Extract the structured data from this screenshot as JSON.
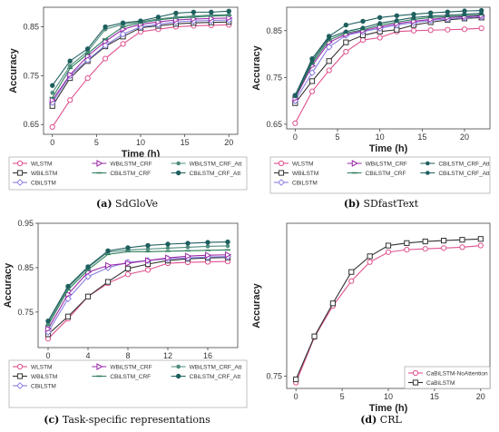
{
  "colors": {
    "WLSTM": "#e0508f",
    "WBiLSTM": "#333333",
    "CBiLSTM": "#8a7fe0",
    "WBiLSTM_CRF": "#9b2aa8",
    "CBiLSTM_CRF": "#2e7d5b",
    "WBiLSTM_CRF_Att": "#4e8d7d",
    "CBiLSTM_CRF_Att": "#1f5f5f",
    "CaBiLSTM-NoAttention": "#e0508f",
    "CaBiLSTM": "#333333"
  },
  "chart_data": [
    {
      "type": "line",
      "id": "a",
      "caption_letter": "(a)",
      "caption_text": "SdGloVe",
      "xlabel": "Time (h)",
      "ylabel": "Accuracy",
      "xlim": [
        -1,
        21
      ],
      "ylim": [
        0.63,
        0.89
      ],
      "xticks": [
        0,
        5,
        10,
        15,
        20
      ],
      "yticks": [
        0.65,
        0.75,
        0.85
      ],
      "x": [
        0,
        2,
        4,
        6,
        8,
        10,
        12,
        14,
        16,
        18,
        20
      ],
      "legend": {
        "entries": [
          "WLSTM",
          "WBiLSTM_CRF",
          "WBiLSTM_CRF_Att",
          "WBiLSTM",
          "CBiLSTM_CRF",
          "CBiLSTM_CRF_Att",
          "CBiLSTM"
        ]
      },
      "series": [
        {
          "name": "WLSTM",
          "marker": "circle",
          "values": [
            0.645,
            0.7,
            0.745,
            0.785,
            0.815,
            0.84,
            0.845,
            0.85,
            0.852,
            0.853,
            0.854
          ]
        },
        {
          "name": "WBiLSTM",
          "marker": "square",
          "values": [
            0.688,
            0.745,
            0.78,
            0.81,
            0.83,
            0.848,
            0.852,
            0.856,
            0.858,
            0.859,
            0.86
          ]
        },
        {
          "name": "CBiLSTM",
          "marker": "diamond",
          "values": [
            0.695,
            0.75,
            0.782,
            0.812,
            0.835,
            0.85,
            0.855,
            0.86,
            0.862,
            0.863,
            0.864
          ]
        },
        {
          "name": "WBiLSTM_CRF",
          "marker": "triangle",
          "values": [
            0.7,
            0.752,
            0.79,
            0.82,
            0.845,
            0.855,
            0.86,
            0.864,
            0.866,
            0.867,
            0.868
          ]
        },
        {
          "name": "CBiLSTM_CRF",
          "marker": "dash",
          "values": [
            0.705,
            0.765,
            0.795,
            0.825,
            0.85,
            0.858,
            0.864,
            0.868,
            0.87,
            0.872,
            0.873
          ]
        },
        {
          "name": "WBiLSTM_CRF_Att",
          "marker": "star",
          "values": [
            0.715,
            0.77,
            0.8,
            0.845,
            0.855,
            0.86,
            0.866,
            0.87,
            0.872,
            0.874,
            0.875
          ]
        },
        {
          "name": "CBiLSTM_CRF_Att",
          "marker": "hex",
          "values": [
            0.73,
            0.78,
            0.805,
            0.85,
            0.858,
            0.862,
            0.87,
            0.878,
            0.88,
            0.88,
            0.882
          ]
        }
      ]
    },
    {
      "type": "line",
      "id": "b",
      "caption_letter": "(b)",
      "caption_text": "SDfastText",
      "xlabel": "Time (h)",
      "ylabel": "Accuracy",
      "xlim": [
        -1,
        23
      ],
      "ylim": [
        0.64,
        0.9
      ],
      "xticks": [
        0,
        5,
        10,
        15,
        20
      ],
      "yticks": [
        0.65,
        0.75,
        0.85
      ],
      "x": [
        0,
        2,
        4,
        6,
        8,
        10,
        12,
        14,
        16,
        18,
        20,
        22
      ],
      "legend": {
        "entries": [
          "WLSTM",
          "WBiLSTM_CRF",
          "CBiLSTM_CRF_Att",
          "WBiLSTM",
          "CBiLSTM_CRF",
          "CBiLSTM_CRF_Att",
          "CBiLSTM"
        ]
      },
      "series": [
        {
          "name": "WLSTM",
          "marker": "circle",
          "values": [
            0.652,
            0.72,
            0.765,
            0.805,
            0.83,
            0.835,
            0.848,
            0.85,
            0.851,
            0.852,
            0.853,
            0.855
          ]
        },
        {
          "name": "WBiLSTM",
          "marker": "square",
          "values": [
            0.695,
            0.742,
            0.785,
            0.825,
            0.84,
            0.848,
            0.852,
            0.862,
            0.868,
            0.873,
            0.876,
            0.878
          ]
        },
        {
          "name": "CBiLSTM",
          "marker": "diamond",
          "values": [
            0.7,
            0.76,
            0.815,
            0.84,
            0.848,
            0.855,
            0.862,
            0.867,
            0.872,
            0.875,
            0.878,
            0.88
          ]
        },
        {
          "name": "WBiLSTM_CRF",
          "marker": "triangle",
          "values": [
            0.705,
            0.775,
            0.825,
            0.842,
            0.85,
            0.858,
            0.865,
            0.87,
            0.874,
            0.878,
            0.88,
            0.882
          ]
        },
        {
          "name": "CBiLSTM_CRF",
          "marker": "dash",
          "values": [
            0.708,
            0.78,
            0.83,
            0.845,
            0.852,
            0.862,
            0.868,
            0.874,
            0.878,
            0.88,
            0.882,
            0.884
          ]
        },
        {
          "name": "CBiLSTM_CRF_Att",
          "marker": "star",
          "values": [
            0.71,
            0.785,
            0.835,
            0.848,
            0.856,
            0.866,
            0.872,
            0.878,
            0.881,
            0.883,
            0.885,
            0.887
          ]
        },
        {
          "name": "CBiLSTM_CRF_Att",
          "marker": "hex",
          "values": [
            0.712,
            0.79,
            0.838,
            0.862,
            0.87,
            0.878,
            0.882,
            0.885,
            0.888,
            0.89,
            0.892,
            0.893
          ]
        }
      ]
    },
    {
      "type": "line",
      "id": "c",
      "caption_letter": "(c)",
      "caption_text": "Task-specific representations",
      "xlabel": "Time (h)",
      "ylabel": "Accuracy",
      "xlim": [
        -1,
        19
      ],
      "ylim": [
        0.67,
        0.95
      ],
      "xticks": [
        0,
        4,
        8,
        12,
        16
      ],
      "yticks": [
        0.75,
        0.85,
        0.95
      ],
      "x": [
        0,
        2,
        4,
        6,
        8,
        10,
        12,
        14,
        16,
        18
      ],
      "legend": {
        "entries": [
          "WLSTM",
          "WBiLSTM_CRF",
          "WBiLSTM_CRF_Att",
          "WBiLSTM",
          "CBiLSTM_CRF",
          "CBiLSTM_CRF_Att",
          "CBiLSTM"
        ]
      },
      "series": [
        {
          "name": "WLSTM",
          "marker": "circle",
          "values": [
            0.69,
            0.735,
            0.785,
            0.815,
            0.835,
            0.845,
            0.86,
            0.862,
            0.863,
            0.864
          ]
        },
        {
          "name": "WBiLSTM",
          "marker": "square",
          "values": [
            0.7,
            0.74,
            0.785,
            0.818,
            0.848,
            0.858,
            0.866,
            0.87,
            0.872,
            0.873
          ]
        },
        {
          "name": "CBiLSTM",
          "marker": "diamond",
          "values": [
            0.705,
            0.78,
            0.83,
            0.85,
            0.862,
            0.866,
            0.87,
            0.872,
            0.874,
            0.875
          ]
        },
        {
          "name": "WBiLSTM_CRF",
          "marker": "triangle",
          "values": [
            0.712,
            0.79,
            0.84,
            0.855,
            0.86,
            0.866,
            0.872,
            0.876,
            0.878,
            0.879
          ]
        },
        {
          "name": "CBiLSTM_CRF",
          "marker": "dash",
          "values": [
            0.72,
            0.8,
            0.845,
            0.88,
            0.886,
            0.886,
            0.887,
            0.888,
            0.889,
            0.89
          ]
        },
        {
          "name": "WBiLSTM_CRF_Att",
          "marker": "star",
          "values": [
            0.725,
            0.805,
            0.85,
            0.885,
            0.89,
            0.892,
            0.894,
            0.896,
            0.898,
            0.899
          ]
        },
        {
          "name": "CBiLSTM_CRF_Att",
          "marker": "hex",
          "values": [
            0.73,
            0.808,
            0.852,
            0.888,
            0.895,
            0.9,
            0.903,
            0.905,
            0.907,
            0.908
          ]
        }
      ]
    },
    {
      "type": "line",
      "id": "d",
      "caption_letter": "(d)",
      "caption_text": "CRL",
      "xlabel": "Time (h)",
      "ylabel": "Accuracy",
      "xlim": [
        -1,
        21
      ],
      "ylim": [
        0.735,
        0.935
      ],
      "xticks": [
        0,
        5,
        10,
        15,
        20
      ],
      "yticks": [
        0.75
      ],
      "x": [
        0,
        2,
        4,
        6,
        8,
        10,
        12,
        14,
        16,
        18,
        20
      ],
      "legend": {
        "entries": [
          "CaBiLSTM-NoAttention",
          "CaBiLSTM"
        ]
      },
      "series": [
        {
          "name": "CaBiLSTM-NoAttention",
          "marker": "circle",
          "values": [
            0.742,
            0.797,
            0.835,
            0.865,
            0.888,
            0.9,
            0.903,
            0.904,
            0.905,
            0.906,
            0.908
          ]
        },
        {
          "name": "CaBiLSTM",
          "marker": "square",
          "values": [
            0.746,
            0.798,
            0.838,
            0.876,
            0.895,
            0.908,
            0.911,
            0.913,
            0.914,
            0.915,
            0.916
          ]
        }
      ]
    }
  ]
}
